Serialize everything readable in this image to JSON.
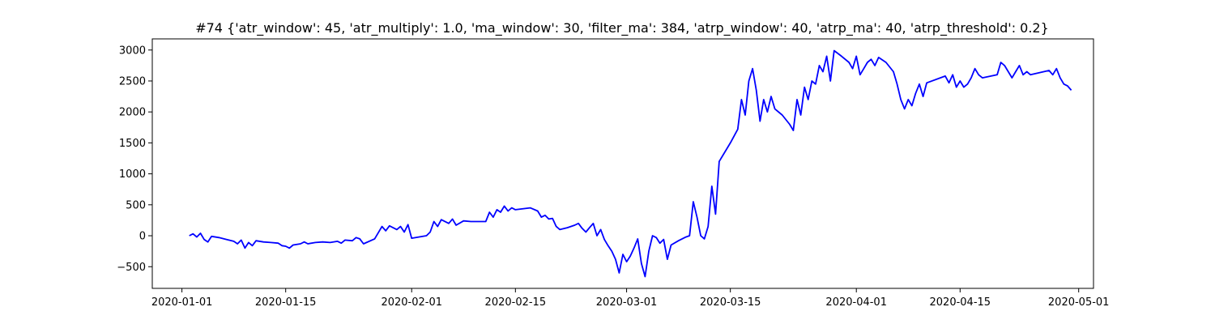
{
  "chart_data": {
    "type": "line",
    "title": "#74 {'atr_window': 45, 'atr_multiply': 1.0, 'ma_window': 30, 'filter_ma': 384, 'atrp_window': 40, 'atrp_ma': 40, 'atrp_threshold': 0.2}",
    "xlabel": "",
    "ylabel": "",
    "xlim": [
      "2019-12-28",
      "2020-05-03"
    ],
    "ylim": [
      -850,
      3180
    ],
    "grid": false,
    "x_ticks": [
      "2020-01-01",
      "2020-01-15",
      "2020-02-01",
      "2020-02-15",
      "2020-03-01",
      "2020-03-15",
      "2020-04-01",
      "2020-04-15",
      "2020-05-01"
    ],
    "y_ticks": [
      -500,
      0,
      500,
      1000,
      1500,
      2000,
      2500,
      3000
    ],
    "series": [
      {
        "color": "#0000ff",
        "points": [
          [
            "2020-01-02",
            0
          ],
          [
            "2020-01-02T12",
            30
          ],
          [
            "2020-01-03",
            -20
          ],
          [
            "2020-01-03T12",
            40
          ],
          [
            "2020-01-04",
            -60
          ],
          [
            "2020-01-04T12",
            -100
          ],
          [
            "2020-01-05",
            -10
          ],
          [
            "2020-01-06",
            -30
          ],
          [
            "2020-01-07",
            -60
          ],
          [
            "2020-01-08",
            -90
          ],
          [
            "2020-01-08T12",
            -130
          ],
          [
            "2020-01-09",
            -70
          ],
          [
            "2020-01-09T12",
            -200
          ],
          [
            "2020-01-10",
            -110
          ],
          [
            "2020-01-10T12",
            -160
          ],
          [
            "2020-01-11",
            -80
          ],
          [
            "2020-01-12",
            -100
          ],
          [
            "2020-01-13",
            -110
          ],
          [
            "2020-01-14",
            -120
          ],
          [
            "2020-01-14T12",
            -160
          ],
          [
            "2020-01-15",
            -170
          ],
          [
            "2020-01-15T12",
            -200
          ],
          [
            "2020-01-16",
            -150
          ],
          [
            "2020-01-17",
            -130
          ],
          [
            "2020-01-17T12",
            -100
          ],
          [
            "2020-01-18",
            -130
          ],
          [
            "2020-01-19",
            -110
          ],
          [
            "2020-01-20",
            -100
          ],
          [
            "2020-01-21",
            -110
          ],
          [
            "2020-01-22",
            -90
          ],
          [
            "2020-01-22T12",
            -120
          ],
          [
            "2020-01-23",
            -70
          ],
          [
            "2020-01-24",
            -80
          ],
          [
            "2020-01-24T12",
            -30
          ],
          [
            "2020-01-25",
            -50
          ],
          [
            "2020-01-25T12",
            -130
          ],
          [
            "2020-01-27",
            -50
          ],
          [
            "2020-01-27T12",
            50
          ],
          [
            "2020-01-28",
            150
          ],
          [
            "2020-01-28T12",
            80
          ],
          [
            "2020-01-29",
            160
          ],
          [
            "2020-01-30",
            100
          ],
          [
            "2020-01-30T12",
            150
          ],
          [
            "2020-01-31",
            60
          ],
          [
            "2020-01-31T12",
            180
          ],
          [
            "2020-02-01",
            -40
          ],
          [
            "2020-02-03",
            0
          ],
          [
            "2020-02-03T12",
            60
          ],
          [
            "2020-02-04",
            230
          ],
          [
            "2020-02-04T12",
            150
          ],
          [
            "2020-02-05",
            260
          ],
          [
            "2020-02-06",
            200
          ],
          [
            "2020-02-06T12",
            270
          ],
          [
            "2020-02-07",
            170
          ],
          [
            "2020-02-08",
            240
          ],
          [
            "2020-02-09",
            230
          ],
          [
            "2020-02-10",
            230
          ],
          [
            "2020-02-11",
            230
          ],
          [
            "2020-02-11T12",
            380
          ],
          [
            "2020-02-12",
            300
          ],
          [
            "2020-02-12T12",
            420
          ],
          [
            "2020-02-13",
            380
          ],
          [
            "2020-02-13T12",
            480
          ],
          [
            "2020-02-14",
            400
          ],
          [
            "2020-02-14T12",
            450
          ],
          [
            "2020-02-15",
            420
          ],
          [
            "2020-02-17",
            450
          ],
          [
            "2020-02-18",
            400
          ],
          [
            "2020-02-18T12",
            300
          ],
          [
            "2020-02-19",
            330
          ],
          [
            "2020-02-19T12",
            270
          ],
          [
            "2020-02-20",
            280
          ],
          [
            "2020-02-20T12",
            150
          ],
          [
            "2020-02-21",
            100
          ],
          [
            "2020-02-22",
            130
          ],
          [
            "2020-02-23",
            170
          ],
          [
            "2020-02-23T12",
            200
          ],
          [
            "2020-02-24",
            120
          ],
          [
            "2020-02-24T12",
            60
          ],
          [
            "2020-02-25",
            130
          ],
          [
            "2020-02-25T12",
            200
          ],
          [
            "2020-02-26",
            0
          ],
          [
            "2020-02-26T12",
            100
          ],
          [
            "2020-02-27",
            -60
          ],
          [
            "2020-02-27T12",
            -160
          ],
          [
            "2020-02-28",
            -250
          ],
          [
            "2020-02-28T12",
            -380
          ],
          [
            "2020-02-29",
            -600
          ],
          [
            "2020-02-29T12",
            -300
          ],
          [
            "2020-03-01",
            -420
          ],
          [
            "2020-03-01T12",
            -330
          ],
          [
            "2020-03-02",
            -200
          ],
          [
            "2020-03-02T12",
            -50
          ],
          [
            "2020-03-03",
            -450
          ],
          [
            "2020-03-03T12",
            -660
          ],
          [
            "2020-03-04",
            -250
          ],
          [
            "2020-03-04T12",
            0
          ],
          [
            "2020-03-05",
            -30
          ],
          [
            "2020-03-05T12",
            -120
          ],
          [
            "2020-03-06",
            -60
          ],
          [
            "2020-03-06T12",
            -380
          ],
          [
            "2020-03-07",
            -150
          ],
          [
            "2020-03-08",
            -80
          ],
          [
            "2020-03-09",
            -20
          ],
          [
            "2020-03-09T12",
            0
          ],
          [
            "2020-03-10",
            550
          ],
          [
            "2020-03-10T12",
            300
          ],
          [
            "2020-03-11",
            0
          ],
          [
            "2020-03-11T12",
            -50
          ],
          [
            "2020-03-12",
            150
          ],
          [
            "2020-03-12T12",
            800
          ],
          [
            "2020-03-13",
            350
          ],
          [
            "2020-03-13T12",
            1200
          ],
          [
            "2020-03-15",
            1500
          ],
          [
            "2020-03-16",
            1720
          ],
          [
            "2020-03-16T12",
            2200
          ],
          [
            "2020-03-17",
            1950
          ],
          [
            "2020-03-17T12",
            2500
          ],
          [
            "2020-03-18",
            2700
          ],
          [
            "2020-03-18T12",
            2350
          ],
          [
            "2020-03-19",
            1850
          ],
          [
            "2020-03-19T12",
            2200
          ],
          [
            "2020-03-20",
            2000
          ],
          [
            "2020-03-20T12",
            2250
          ],
          [
            "2020-03-21",
            2050
          ],
          [
            "2020-03-22",
            1950
          ],
          [
            "2020-03-23",
            1800
          ],
          [
            "2020-03-23T12",
            1700
          ],
          [
            "2020-03-24",
            2200
          ],
          [
            "2020-03-24T12",
            1950
          ],
          [
            "2020-03-25",
            2400
          ],
          [
            "2020-03-25T12",
            2200
          ],
          [
            "2020-03-26",
            2500
          ],
          [
            "2020-03-26T12",
            2450
          ],
          [
            "2020-03-27",
            2750
          ],
          [
            "2020-03-27T12",
            2650
          ],
          [
            "2020-03-28",
            2900
          ],
          [
            "2020-03-28T12",
            2500
          ],
          [
            "2020-03-29",
            2990
          ],
          [
            "2020-03-30",
            2900
          ],
          [
            "2020-03-31",
            2800
          ],
          [
            "2020-03-31T12",
            2700
          ],
          [
            "2020-04-01",
            2900
          ],
          [
            "2020-04-01T12",
            2600
          ],
          [
            "2020-04-02",
            2700
          ],
          [
            "2020-04-02T12",
            2800
          ],
          [
            "2020-04-03",
            2850
          ],
          [
            "2020-04-03T12",
            2750
          ],
          [
            "2020-04-04",
            2880
          ],
          [
            "2020-04-05",
            2800
          ],
          [
            "2020-04-06",
            2650
          ],
          [
            "2020-04-06T12",
            2450
          ],
          [
            "2020-04-07",
            2200
          ],
          [
            "2020-04-07T12",
            2050
          ],
          [
            "2020-04-08",
            2200
          ],
          [
            "2020-04-08T12",
            2100
          ],
          [
            "2020-04-09",
            2300
          ],
          [
            "2020-04-09T12",
            2450
          ],
          [
            "2020-04-10",
            2250
          ],
          [
            "2020-04-10T12",
            2470
          ],
          [
            "2020-04-13",
            2580
          ],
          [
            "2020-04-13T12",
            2470
          ],
          [
            "2020-04-14",
            2600
          ],
          [
            "2020-04-14T12",
            2400
          ],
          [
            "2020-04-15",
            2500
          ],
          [
            "2020-04-15T12",
            2400
          ],
          [
            "2020-04-16",
            2450
          ],
          [
            "2020-04-16T12",
            2550
          ],
          [
            "2020-04-17",
            2700
          ],
          [
            "2020-04-17T12",
            2600
          ],
          [
            "2020-04-18",
            2550
          ],
          [
            "2020-04-20",
            2600
          ],
          [
            "2020-04-20T12",
            2800
          ],
          [
            "2020-04-21",
            2750
          ],
          [
            "2020-04-21T12",
            2650
          ],
          [
            "2020-04-22",
            2550
          ],
          [
            "2020-04-22T12",
            2650
          ],
          [
            "2020-04-23",
            2750
          ],
          [
            "2020-04-23T12",
            2600
          ],
          [
            "2020-04-24",
            2650
          ],
          [
            "2020-04-24T12",
            2600
          ],
          [
            "2020-04-27",
            2670
          ],
          [
            "2020-04-27T12",
            2600
          ],
          [
            "2020-04-28",
            2700
          ],
          [
            "2020-04-28T12",
            2550
          ],
          [
            "2020-04-29",
            2450
          ],
          [
            "2020-04-29T12",
            2420
          ],
          [
            "2020-04-30",
            2350
          ]
        ]
      }
    ]
  }
}
